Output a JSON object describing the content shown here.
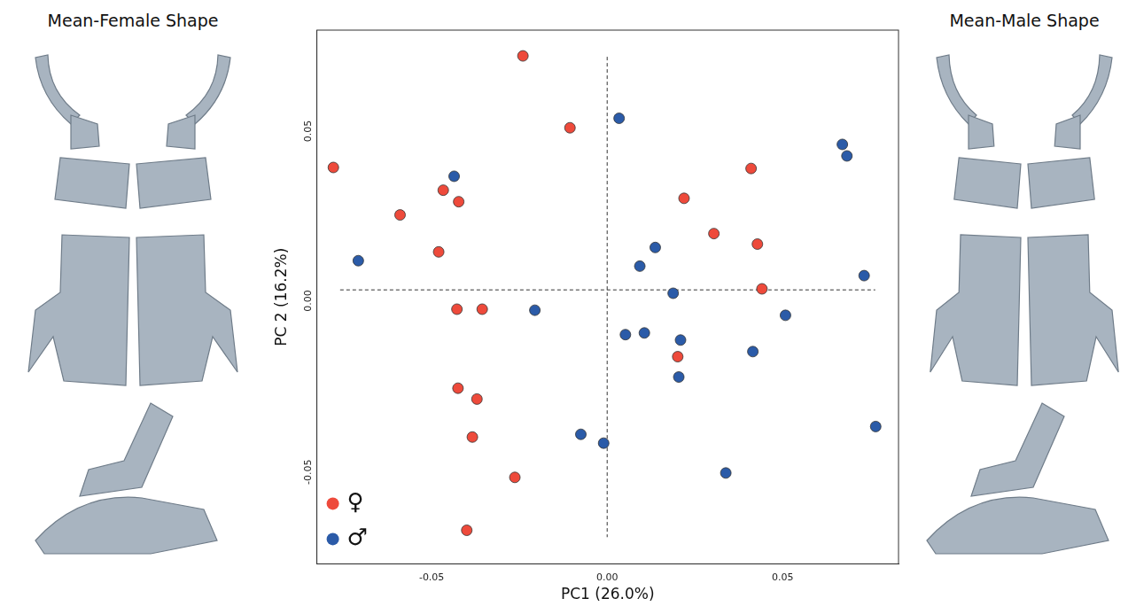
{
  "chart_data": {
    "type": "scatter",
    "xlabel": "PC1 (26.0%)",
    "ylabel": "PC 2 (16.2%)",
    "annotations": [
      "Mean-Female Shape",
      "Mean-Male Shape"
    ],
    "xlim": [
      -0.0827,
      0.083
    ],
    "ylim": [
      -0.0808,
      0.0766
    ],
    "xticks": [
      -0.05,
      {
        "value": 0,
        "label": "0.00"
      },
      0.05
    ],
    "yticks": [
      -0.05,
      {
        "value": 0,
        "label": "0.00"
      },
      0.05
    ],
    "grid": false,
    "legend": "lower left",
    "series": [
      {
        "name": "♀",
        "color": "#ee4a3b",
        "marker": "circle",
        "x": [
          -0.078,
          -0.024,
          -0.0106,
          -0.0467,
          -0.0423,
          -0.059,
          -0.048,
          -0.0428,
          -0.0356,
          -0.0425,
          -0.0371,
          -0.0384,
          -0.0263,
          -0.04,
          0.0219,
          0.041,
          0.0304,
          0.0428,
          0.0441,
          0.0201
        ],
        "values": [
          0.0361,
          0.069,
          0.0478,
          0.0294,
          0.026,
          0.0221,
          0.0112,
          -0.0057,
          -0.0057,
          -0.029,
          -0.0322,
          -0.0434,
          -0.0553,
          -0.0709,
          0.027,
          0.0358,
          0.0166,
          0.0135,
          0.0003,
          -0.0197
        ]
      },
      {
        "name": "♂",
        "color": "#2b5ba8",
        "marker": "circle",
        "x": [
          0.0034,
          -0.0436,
          -0.0709,
          -0.0206,
          -0.0075,
          -0.001,
          0.0093,
          0.0137,
          0.0052,
          0.0106,
          0.0188,
          0.0209,
          0.0204,
          0.067,
          0.0683,
          0.0732,
          0.0508,
          0.0415,
          0.0338,
          0.0765
        ],
        "values": [
          0.0506,
          0.0335,
          0.0086,
          -0.006,
          -0.0426,
          -0.0452,
          0.007,
          0.0125,
          -0.0132,
          -0.0127,
          -0.001,
          -0.0148,
          -0.0257,
          0.0429,
          0.0395,
          0.0042,
          -0.0075,
          -0.0182,
          -0.054,
          -0.0403
        ]
      }
    ]
  }
}
